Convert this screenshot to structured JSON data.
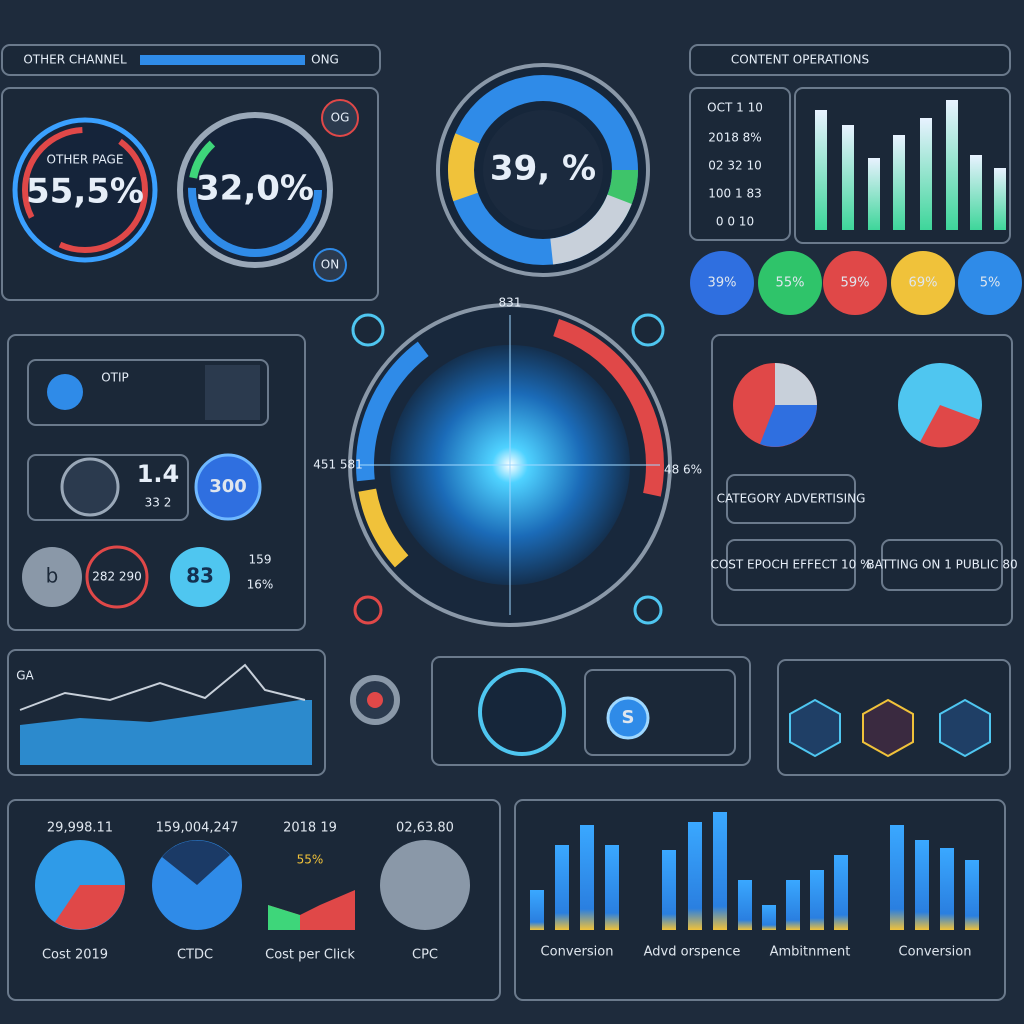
{
  "top_left": {
    "header": "OTHER CHANNEL",
    "header_tag": "ONG",
    "gauge_1": {
      "caption": "OTHER PAGE",
      "value": "55,5%"
    },
    "gauge_2": {
      "value": "32,0%"
    },
    "badge_1": "OG",
    "badge_2": "ON"
  },
  "top_center": {
    "value": "39, %"
  },
  "top_right": {
    "header": "CONTENT OPERATIONS",
    "list": [
      "OCT 1 10",
      "2018 8%",
      "02 32 10",
      "100 1 83",
      "0 0 10"
    ],
    "circles": [
      "39%",
      "55%",
      "59%",
      "69%",
      "5%"
    ]
  },
  "left_middle": {
    "profile": "OTIP",
    "metric_1": "1.4",
    "metric_1_sub": "33 2",
    "button": "300",
    "icon": "b",
    "ring": "282 290",
    "bubble": "83",
    "bubble_note": "159",
    "bubble_pct": "16%"
  },
  "center": {
    "top_label": "831",
    "left_label": "451 581",
    "right_label": "48 6%"
  },
  "right_middle": {
    "box_1": "CATEGORY ADVERTISING",
    "box_2": "COST EPOCH EFFECT 10 %",
    "box_3": "BATTING ON 1 PUBLIC 80"
  },
  "row_four": {
    "line_label": "GA",
    "badge": "S"
  },
  "bottom_left": {
    "stats": [
      "29,998.11",
      "159,004,247",
      "2018 19",
      "02,63.80"
    ],
    "labels": [
      "Cost 2019",
      "CTDC",
      "Cost per Click",
      "CPC"
    ],
    "small": "55%"
  },
  "bottom_right": {
    "labels": [
      "Conversion",
      "Advd orspence",
      "Ambitnment",
      "Conversion"
    ]
  }
}
